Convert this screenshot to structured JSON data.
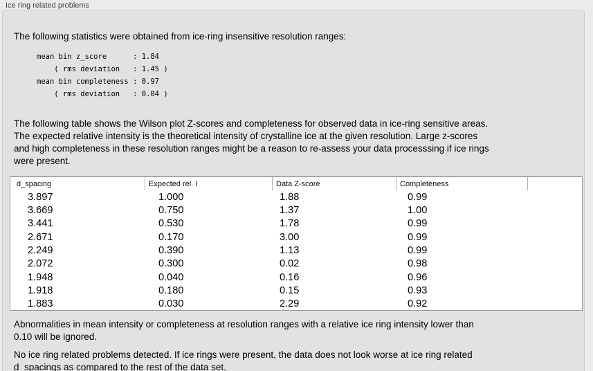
{
  "panel": {
    "title": "Ice ring related problems"
  },
  "intro": {
    "text": "The following statistics were obtained from ice-ring insensitive resolution ranges:"
  },
  "stats": {
    "lines": [
      "mean bin z_score      : 1.84",
      "    ( rms deviation   : 1.45 )",
      "mean bin completeness : 0.97",
      "    ( rms deviation   : 0.04 )"
    ]
  },
  "description": {
    "lines": [
      "The following table shows the Wilson plot Z-scores and completeness for observed data in ice-ring sensitive areas.",
      "The expected relative intensity is the theoretical intensity of crystalline ice at the given resolution. Large z-scores",
      "and high completeness in these resolution ranges might be a reason to re-assess your data processsing if ice rings",
      "were present."
    ]
  },
  "table": {
    "headers": [
      "d_spacing",
      "Expected rel. I",
      "Data Z-score",
      "Completeness"
    ],
    "rows": [
      [
        "3.897",
        "1.000",
        "1.88",
        "0.99"
      ],
      [
        "3.669",
        "0.750",
        "1.37",
        "1.00"
      ],
      [
        "3.441",
        "0.530",
        "1.78",
        "0.99"
      ],
      [
        "2.671",
        "0.170",
        "3.00",
        "0.99"
      ],
      [
        "2.249",
        "0.390",
        "1.13",
        "0.99"
      ],
      [
        "2.072",
        "0.300",
        "0.02",
        "0.98"
      ],
      [
        "1.948",
        "0.040",
        "0.16",
        "0.96"
      ],
      [
        "1.918",
        "0.180",
        "0.15",
        "0.93"
      ],
      [
        "1.883",
        "0.030",
        "2.29",
        "0.92"
      ]
    ]
  },
  "notes": {
    "ignore": {
      "lines": [
        "Abnormalities in mean intensity or completeness at resolution ranges with a relative ice ring intensity lower than",
        "0.10 will be ignored."
      ]
    },
    "conclusion": {
      "lines": [
        "No ice ring related problems detected. If ice rings were present, the data does not look worse at ice ring related",
        "d_spacings as compared to the rest of the data set."
      ]
    }
  },
  "colors": {
    "page_background": "#ebebeb",
    "panel_background": "#e2e2e2",
    "panel_border": "#cacaca",
    "table_border": "#9a9a9a",
    "header_separator": "#b2b2b2"
  }
}
